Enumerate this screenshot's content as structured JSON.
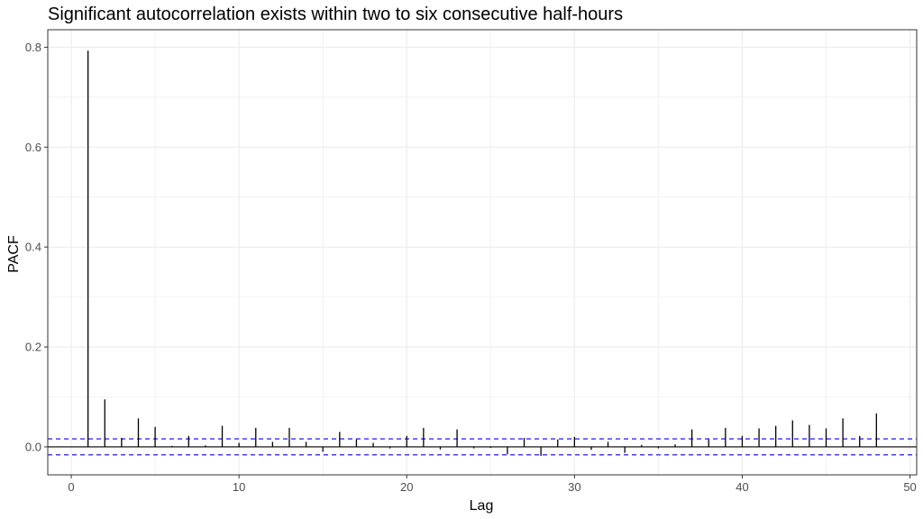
{
  "chart_data": {
    "type": "bar",
    "title": "Significant autocorrelation exists within two to six consecutive half-hours",
    "xlabel": "Lag",
    "ylabel": "PACF",
    "xlim": [
      -1.4,
      50.4
    ],
    "ylim": [
      -0.056,
      0.835
    ],
    "x_ticks": [
      0,
      10,
      20,
      30,
      40,
      50
    ],
    "y_ticks": [
      0.0,
      0.2,
      0.4,
      0.6,
      0.8
    ],
    "x_tick_labels": [
      "0",
      "10",
      "20",
      "30",
      "40",
      "50"
    ],
    "y_tick_labels": [
      "0.0",
      "0.2",
      "0.4",
      "0.6",
      "0.8"
    ],
    "grid": true,
    "confidence_bound": 0.016,
    "lags": [
      1,
      2,
      3,
      4,
      5,
      6,
      7,
      8,
      9,
      10,
      11,
      12,
      13,
      14,
      15,
      16,
      17,
      18,
      19,
      20,
      21,
      22,
      23,
      24,
      25,
      26,
      27,
      28,
      29,
      30,
      31,
      32,
      33,
      34,
      35,
      36,
      37,
      38,
      39,
      40,
      41,
      42,
      43,
      44,
      45,
      46,
      47,
      48
    ],
    "values": [
      0.793,
      0.095,
      0.018,
      0.057,
      0.04,
      0.002,
      0.022,
      0.003,
      0.042,
      0.008,
      0.038,
      0.01,
      0.038,
      0.01,
      -0.01,
      0.03,
      0.015,
      0.008,
      -0.003,
      0.022,
      0.038,
      -0.005,
      0.035,
      -0.003,
      -0.002,
      -0.015,
      0.018,
      -0.018,
      0.015,
      0.02,
      -0.006,
      0.01,
      -0.012,
      0.004,
      -0.003,
      0.005,
      0.035,
      0.015,
      0.038,
      0.022,
      0.037,
      0.042,
      0.053,
      0.044,
      0.037,
      0.057,
      0.022,
      0.067
    ]
  },
  "colors": {
    "bars": "#000000",
    "confidence_lines": "#0000ff",
    "grid": "#ebebeb",
    "panel_border": "#333333"
  }
}
